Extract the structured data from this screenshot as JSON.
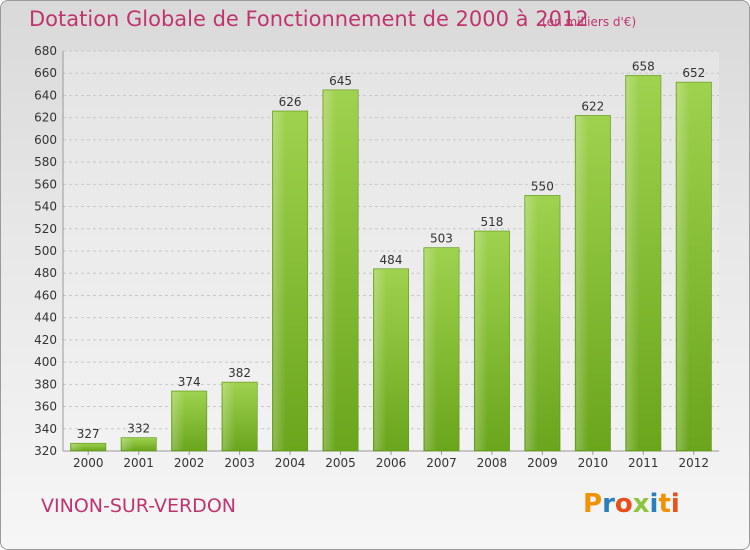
{
  "chart_data": {
    "type": "bar",
    "title": "Dotation Globale de Fonctionnement de 2000 à 2012",
    "subtitle": "(en milliers d'€)",
    "categories": [
      "2000",
      "2001",
      "2002",
      "2003",
      "2004",
      "2005",
      "2006",
      "2007",
      "2008",
      "2009",
      "2010",
      "2011",
      "2012"
    ],
    "values": [
      327,
      332,
      374,
      382,
      626,
      645,
      484,
      503,
      518,
      550,
      622,
      658,
      652
    ],
    "ylim": [
      320,
      680
    ],
    "yticks": [
      320,
      340,
      360,
      380,
      400,
      420,
      440,
      460,
      480,
      500,
      520,
      540,
      560,
      580,
      600,
      620,
      640,
      660,
      680
    ],
    "grid": true,
    "bar_color": "#8cc63f"
  },
  "commune": "VINON-SUR-VERDON",
  "logo": {
    "letters": [
      "P",
      "r",
      "o",
      "x",
      "i",
      "t",
      "i"
    ],
    "colors": [
      "#f39200",
      "#2a7fc1",
      "#e94e1b",
      "#8cc63f",
      "#2a7fc1",
      "#f39200",
      "#e94e1b"
    ]
  }
}
